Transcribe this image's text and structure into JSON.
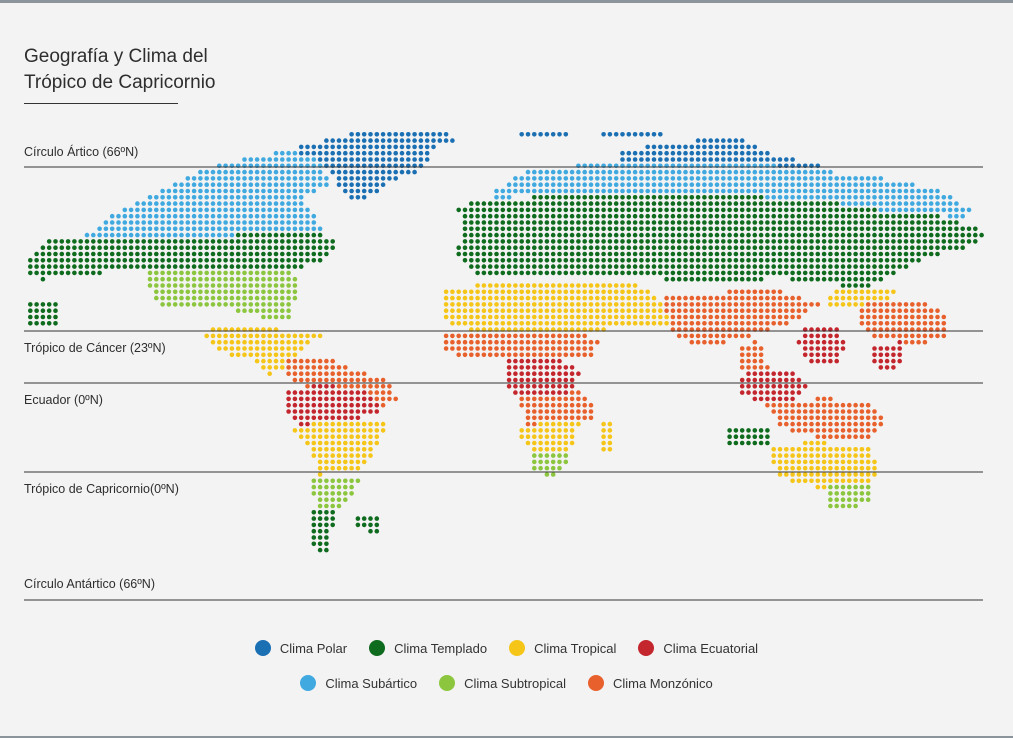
{
  "title": {
    "line1": "Geografía y Clima del",
    "line2": "Trópico de Capricornio"
  },
  "lines": [
    {
      "key": "artic",
      "label": "Círculo Ártico (66ºN)"
    },
    {
      "key": "cancer",
      "label": "Trópico de Cáncer (23ºN)"
    },
    {
      "key": "equator",
      "label": "Ecuador (0ºN)"
    },
    {
      "key": "capricorn",
      "label": "Trópico de Capricornio(0ºN)"
    },
    {
      "key": "antarctic",
      "label": "Círculo Antártico (66ºN)"
    }
  ],
  "legend": {
    "row1": [
      {
        "key": "polar",
        "label": "Clima Polar",
        "color": "#1b6fb3"
      },
      {
        "key": "templado",
        "label": "Clima Templado",
        "color": "#0f6b1e"
      },
      {
        "key": "tropical",
        "label": "Clima Tropical",
        "color": "#f5c518"
      },
      {
        "key": "ecuatorial",
        "label": "Clima Ecuatorial",
        "color": "#c4262e"
      }
    ],
    "row2": [
      {
        "key": "subartico",
        "label": "Clima Subártico",
        "color": "#3fa9e0"
      },
      {
        "key": "subtropical",
        "label": "Clima Subtropical",
        "color": "#8cc63f"
      },
      {
        "key": "monzonico",
        "label": "Clima Monzónico",
        "color": "#e8602c"
      }
    ]
  }
}
